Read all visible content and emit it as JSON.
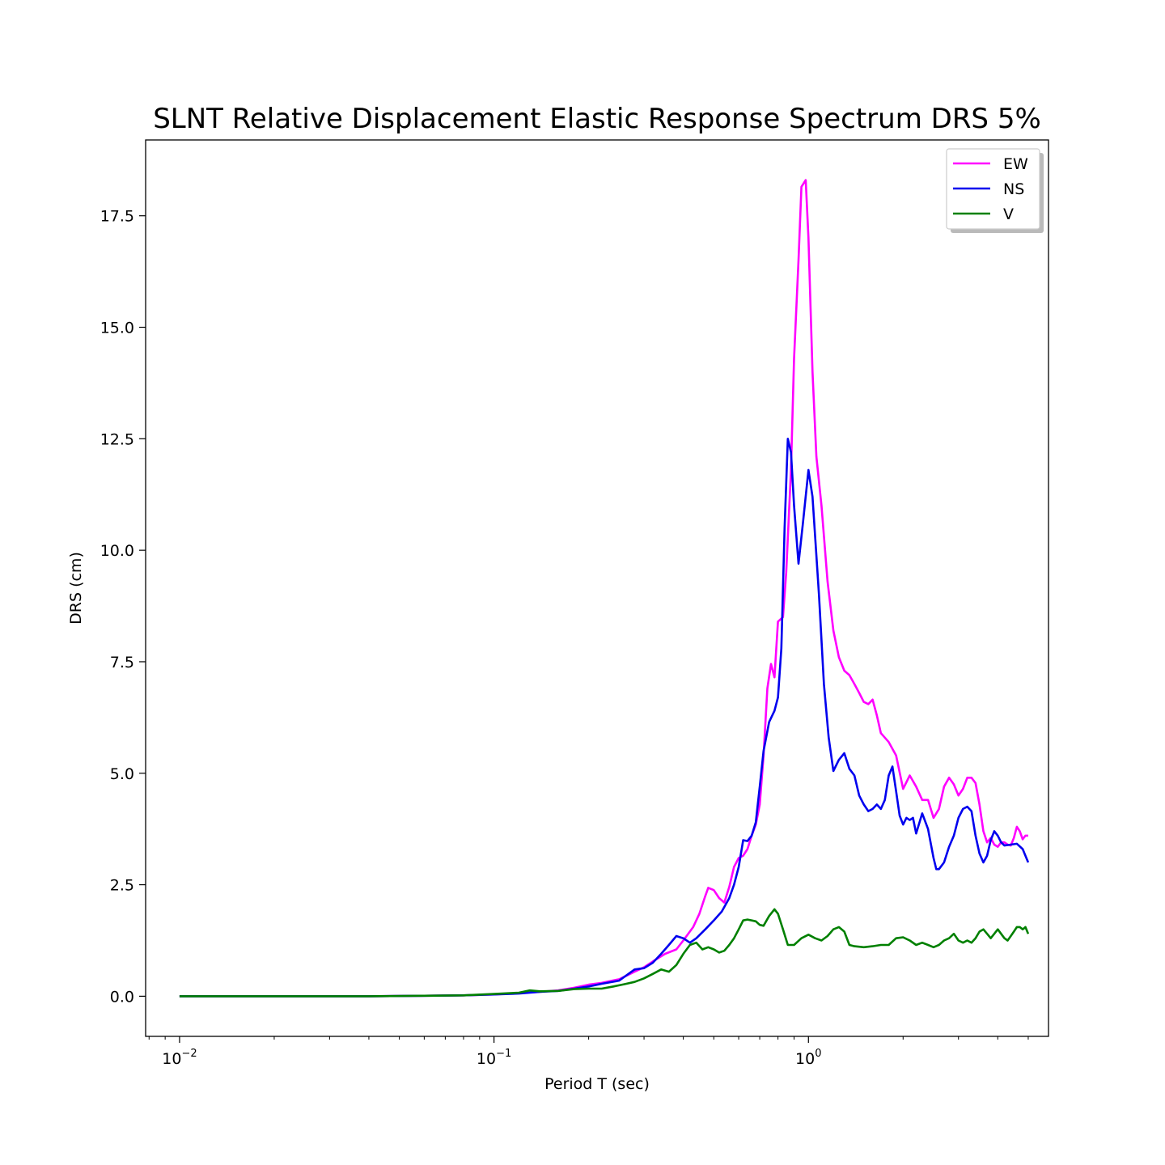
{
  "chart_data": {
    "type": "line",
    "title": "SLNT Relative Displacement Elastic Response Spectrum DRS 5%",
    "xlabel": "Period T (sec)",
    "ylabel": "DRS (cm)",
    "xscale": "log",
    "xlim": [
      0.0078,
      5.8
    ],
    "ylim": [
      -0.9,
      19.2
    ],
    "xticks": [
      {
        "value": 0.01,
        "base": "10",
        "exp": "−2"
      },
      {
        "value": 0.1,
        "base": "10",
        "exp": "−1"
      },
      {
        "value": 1,
        "base": "10",
        "exp": "0"
      }
    ],
    "yticks": [
      {
        "value": 0,
        "label": "0.0"
      },
      {
        "value": 2.5,
        "label": "2.5"
      },
      {
        "value": 5,
        "label": "5.0"
      },
      {
        "value": 7.5,
        "label": "7.5"
      },
      {
        "value": 10,
        "label": "10.0"
      },
      {
        "value": 12.5,
        "label": "12.5"
      },
      {
        "value": 15,
        "label": "15.0"
      },
      {
        "value": 17.5,
        "label": "17.5"
      }
    ],
    "grid": false,
    "legend_position": "top-right",
    "series": [
      {
        "name": "EW",
        "color": "#ff00ff",
        "points": [
          [
            0.01,
            0.0
          ],
          [
            0.02,
            0.0
          ],
          [
            0.04,
            0.0
          ],
          [
            0.06,
            0.01
          ],
          [
            0.08,
            0.02
          ],
          [
            0.1,
            0.04
          ],
          [
            0.12,
            0.07
          ],
          [
            0.14,
            0.1
          ],
          [
            0.16,
            0.13
          ],
          [
            0.18,
            0.19
          ],
          [
            0.2,
            0.26
          ],
          [
            0.22,
            0.3
          ],
          [
            0.25,
            0.38
          ],
          [
            0.28,
            0.55
          ],
          [
            0.3,
            0.65
          ],
          [
            0.32,
            0.78
          ],
          [
            0.35,
            0.95
          ],
          [
            0.38,
            1.05
          ],
          [
            0.4,
            1.25
          ],
          [
            0.43,
            1.55
          ],
          [
            0.45,
            1.85
          ],
          [
            0.47,
            2.25
          ],
          [
            0.48,
            2.43
          ],
          [
            0.5,
            2.38
          ],
          [
            0.52,
            2.2
          ],
          [
            0.54,
            2.1
          ],
          [
            0.56,
            2.45
          ],
          [
            0.58,
            2.9
          ],
          [
            0.6,
            3.1
          ],
          [
            0.62,
            3.15
          ],
          [
            0.64,
            3.3
          ],
          [
            0.66,
            3.6
          ],
          [
            0.68,
            3.85
          ],
          [
            0.7,
            4.3
          ],
          [
            0.72,
            5.4
          ],
          [
            0.74,
            6.9
          ],
          [
            0.76,
            7.45
          ],
          [
            0.78,
            7.15
          ],
          [
            0.8,
            8.4
          ],
          [
            0.83,
            8.5
          ],
          [
            0.85,
            9.5
          ],
          [
            0.88,
            11.8
          ],
          [
            0.9,
            14.3
          ],
          [
            0.93,
            16.5
          ],
          [
            0.95,
            18.15
          ],
          [
            0.98,
            18.3
          ],
          [
            1.0,
            17.0
          ],
          [
            1.03,
            14.0
          ],
          [
            1.06,
            12.1
          ],
          [
            1.1,
            11.0
          ],
          [
            1.15,
            9.3
          ],
          [
            1.2,
            8.2
          ],
          [
            1.25,
            7.6
          ],
          [
            1.3,
            7.3
          ],
          [
            1.35,
            7.2
          ],
          [
            1.4,
            7.0
          ],
          [
            1.45,
            6.8
          ],
          [
            1.5,
            6.6
          ],
          [
            1.55,
            6.55
          ],
          [
            1.6,
            6.65
          ],
          [
            1.65,
            6.3
          ],
          [
            1.7,
            5.9
          ],
          [
            1.8,
            5.7
          ],
          [
            1.9,
            5.4
          ],
          [
            2.0,
            4.65
          ],
          [
            2.1,
            4.95
          ],
          [
            2.2,
            4.7
          ],
          [
            2.3,
            4.4
          ],
          [
            2.4,
            4.4
          ],
          [
            2.5,
            4.0
          ],
          [
            2.6,
            4.2
          ],
          [
            2.7,
            4.7
          ],
          [
            2.8,
            4.9
          ],
          [
            2.9,
            4.75
          ],
          [
            3.0,
            4.5
          ],
          [
            3.1,
            4.65
          ],
          [
            3.2,
            4.9
          ],
          [
            3.3,
            4.9
          ],
          [
            3.4,
            4.78
          ],
          [
            3.5,
            4.3
          ],
          [
            3.6,
            3.7
          ],
          [
            3.7,
            3.45
          ],
          [
            3.8,
            3.55
          ],
          [
            3.9,
            3.4
          ],
          [
            4.0,
            3.35
          ],
          [
            4.1,
            3.45
          ],
          [
            4.2,
            3.45
          ],
          [
            4.3,
            3.4
          ],
          [
            4.4,
            3.38
          ],
          [
            4.5,
            3.55
          ],
          [
            4.6,
            3.8
          ],
          [
            4.7,
            3.7
          ],
          [
            4.8,
            3.52
          ],
          [
            4.9,
            3.6
          ],
          [
            5.0,
            3.6
          ]
        ]
      },
      {
        "name": "NS",
        "color": "#0000ee",
        "points": [
          [
            0.01,
            0.0
          ],
          [
            0.02,
            0.0
          ],
          [
            0.04,
            0.0
          ],
          [
            0.06,
            0.01
          ],
          [
            0.08,
            0.02
          ],
          [
            0.1,
            0.04
          ],
          [
            0.12,
            0.06
          ],
          [
            0.14,
            0.1
          ],
          [
            0.16,
            0.12
          ],
          [
            0.18,
            0.17
          ],
          [
            0.2,
            0.22
          ],
          [
            0.22,
            0.28
          ],
          [
            0.25,
            0.35
          ],
          [
            0.28,
            0.6
          ],
          [
            0.3,
            0.63
          ],
          [
            0.32,
            0.75
          ],
          [
            0.34,
            0.95
          ],
          [
            0.36,
            1.15
          ],
          [
            0.38,
            1.35
          ],
          [
            0.4,
            1.3
          ],
          [
            0.42,
            1.2
          ],
          [
            0.44,
            1.3
          ],
          [
            0.47,
            1.5
          ],
          [
            0.5,
            1.7
          ],
          [
            0.53,
            1.9
          ],
          [
            0.56,
            2.2
          ],
          [
            0.58,
            2.5
          ],
          [
            0.6,
            2.9
          ],
          [
            0.62,
            3.5
          ],
          [
            0.64,
            3.48
          ],
          [
            0.66,
            3.6
          ],
          [
            0.68,
            3.9
          ],
          [
            0.7,
            4.7
          ],
          [
            0.72,
            5.5
          ],
          [
            0.75,
            6.15
          ],
          [
            0.78,
            6.4
          ],
          [
            0.8,
            6.7
          ],
          [
            0.82,
            7.8
          ],
          [
            0.84,
            10.5
          ],
          [
            0.86,
            12.5
          ],
          [
            0.88,
            12.2
          ],
          [
            0.9,
            11.0
          ],
          [
            0.93,
            9.7
          ],
          [
            0.96,
            10.6
          ],
          [
            1.0,
            11.8
          ],
          [
            1.03,
            11.2
          ],
          [
            1.08,
            9.0
          ],
          [
            1.12,
            7.0
          ],
          [
            1.16,
            5.8
          ],
          [
            1.2,
            5.05
          ],
          [
            1.25,
            5.3
          ],
          [
            1.3,
            5.45
          ],
          [
            1.35,
            5.1
          ],
          [
            1.4,
            4.95
          ],
          [
            1.45,
            4.5
          ],
          [
            1.5,
            4.3
          ],
          [
            1.55,
            4.15
          ],
          [
            1.6,
            4.2
          ],
          [
            1.65,
            4.3
          ],
          [
            1.7,
            4.2
          ],
          [
            1.75,
            4.4
          ],
          [
            1.8,
            4.95
          ],
          [
            1.85,
            5.15
          ],
          [
            1.9,
            4.6
          ],
          [
            1.95,
            4.05
          ],
          [
            2.0,
            3.85
          ],
          [
            2.05,
            4.0
          ],
          [
            2.1,
            3.95
          ],
          [
            2.15,
            4.0
          ],
          [
            2.2,
            3.65
          ],
          [
            2.3,
            4.1
          ],
          [
            2.4,
            3.75
          ],
          [
            2.5,
            3.1
          ],
          [
            2.55,
            2.85
          ],
          [
            2.6,
            2.85
          ],
          [
            2.7,
            3.0
          ],
          [
            2.8,
            3.35
          ],
          [
            2.9,
            3.6
          ],
          [
            3.0,
            4.0
          ],
          [
            3.1,
            4.2
          ],
          [
            3.2,
            4.25
          ],
          [
            3.3,
            4.15
          ],
          [
            3.4,
            3.6
          ],
          [
            3.5,
            3.2
          ],
          [
            3.6,
            3.0
          ],
          [
            3.7,
            3.15
          ],
          [
            3.8,
            3.5
          ],
          [
            3.9,
            3.7
          ],
          [
            4.0,
            3.6
          ],
          [
            4.1,
            3.45
          ],
          [
            4.2,
            3.38
          ],
          [
            4.4,
            3.4
          ],
          [
            4.6,
            3.42
          ],
          [
            4.8,
            3.3
          ],
          [
            5.0,
            3.0
          ]
        ]
      },
      {
        "name": "V",
        "color": "#008000",
        "points": [
          [
            0.01,
            0.0
          ],
          [
            0.02,
            0.0
          ],
          [
            0.04,
            0.0
          ],
          [
            0.06,
            0.01
          ],
          [
            0.08,
            0.02
          ],
          [
            0.1,
            0.05
          ],
          [
            0.12,
            0.08
          ],
          [
            0.13,
            0.13
          ],
          [
            0.14,
            0.11
          ],
          [
            0.16,
            0.12
          ],
          [
            0.18,
            0.16
          ],
          [
            0.2,
            0.17
          ],
          [
            0.22,
            0.17
          ],
          [
            0.24,
            0.22
          ],
          [
            0.26,
            0.27
          ],
          [
            0.28,
            0.32
          ],
          [
            0.3,
            0.4
          ],
          [
            0.32,
            0.5
          ],
          [
            0.34,
            0.6
          ],
          [
            0.36,
            0.55
          ],
          [
            0.38,
            0.7
          ],
          [
            0.4,
            0.95
          ],
          [
            0.42,
            1.15
          ],
          [
            0.44,
            1.2
          ],
          [
            0.46,
            1.05
          ],
          [
            0.48,
            1.1
          ],
          [
            0.5,
            1.05
          ],
          [
            0.52,
            0.98
          ],
          [
            0.54,
            1.02
          ],
          [
            0.56,
            1.15
          ],
          [
            0.58,
            1.3
          ],
          [
            0.6,
            1.5
          ],
          [
            0.62,
            1.7
          ],
          [
            0.64,
            1.72
          ],
          [
            0.66,
            1.7
          ],
          [
            0.68,
            1.68
          ],
          [
            0.7,
            1.6
          ],
          [
            0.72,
            1.58
          ],
          [
            0.75,
            1.8
          ],
          [
            0.78,
            1.95
          ],
          [
            0.8,
            1.85
          ],
          [
            0.83,
            1.5
          ],
          [
            0.86,
            1.15
          ],
          [
            0.9,
            1.15
          ],
          [
            0.95,
            1.3
          ],
          [
            1.0,
            1.38
          ],
          [
            1.05,
            1.3
          ],
          [
            1.1,
            1.25
          ],
          [
            1.15,
            1.35
          ],
          [
            1.2,
            1.5
          ],
          [
            1.25,
            1.55
          ],
          [
            1.3,
            1.45
          ],
          [
            1.35,
            1.15
          ],
          [
            1.4,
            1.12
          ],
          [
            1.5,
            1.1
          ],
          [
            1.6,
            1.12
          ],
          [
            1.7,
            1.15
          ],
          [
            1.8,
            1.15
          ],
          [
            1.9,
            1.3
          ],
          [
            2.0,
            1.32
          ],
          [
            2.1,
            1.25
          ],
          [
            2.2,
            1.15
          ],
          [
            2.3,
            1.2
          ],
          [
            2.4,
            1.15
          ],
          [
            2.5,
            1.1
          ],
          [
            2.6,
            1.15
          ],
          [
            2.7,
            1.25
          ],
          [
            2.8,
            1.3
          ],
          [
            2.9,
            1.4
          ],
          [
            3.0,
            1.25
          ],
          [
            3.1,
            1.2
          ],
          [
            3.2,
            1.25
          ],
          [
            3.3,
            1.2
          ],
          [
            3.4,
            1.3
          ],
          [
            3.5,
            1.45
          ],
          [
            3.6,
            1.5
          ],
          [
            3.7,
            1.4
          ],
          [
            3.8,
            1.3
          ],
          [
            3.9,
            1.4
          ],
          [
            4.0,
            1.5
          ],
          [
            4.1,
            1.4
          ],
          [
            4.2,
            1.3
          ],
          [
            4.3,
            1.25
          ],
          [
            4.4,
            1.35
          ],
          [
            4.5,
            1.45
          ],
          [
            4.6,
            1.55
          ],
          [
            4.7,
            1.55
          ],
          [
            4.8,
            1.5
          ],
          [
            4.9,
            1.55
          ],
          [
            5.0,
            1.4
          ]
        ]
      }
    ]
  }
}
